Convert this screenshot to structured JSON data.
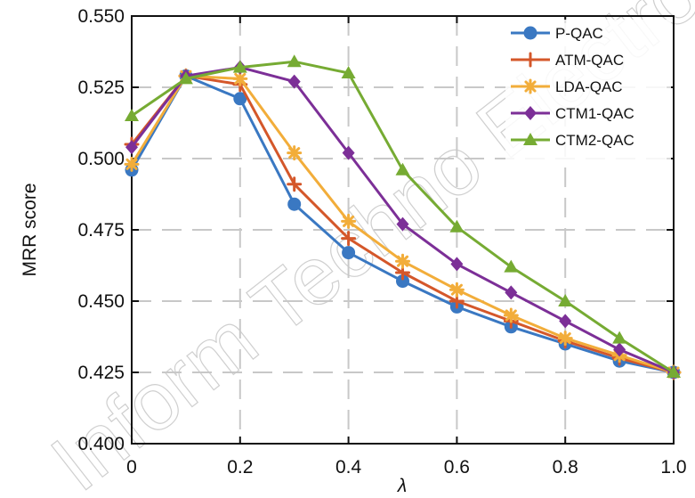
{
  "chart_data": {
    "type": "line",
    "title": "",
    "xlabel": "λ",
    "ylabel": "MRR score",
    "x": [
      0.0,
      0.1,
      0.2,
      0.3,
      0.4,
      0.5,
      0.6,
      0.7,
      0.8,
      0.9,
      1.0
    ],
    "xlim": [
      0.0,
      1.0
    ],
    "ylim": [
      0.4,
      0.55
    ],
    "xticks": [
      "0",
      "0.2",
      "0.4",
      "0.6",
      "0.8",
      "1.0"
    ],
    "yticks": [
      "0.400",
      "0.425",
      "0.450",
      "0.475",
      "0.500",
      "0.525",
      "0.550"
    ],
    "grid": true,
    "legend_position": "top-right",
    "series": [
      {
        "name": "P-QAC",
        "color": "#3a78c2",
        "marker": "circle",
        "values": [
          0.496,
          0.529,
          0.521,
          0.484,
          0.467,
          0.457,
          0.448,
          0.441,
          0.435,
          0.429,
          0.425
        ]
      },
      {
        "name": "ATM-QAC",
        "color": "#d4572a",
        "marker": "plus",
        "values": [
          0.505,
          0.529,
          0.526,
          0.491,
          0.472,
          0.46,
          0.45,
          0.443,
          0.436,
          0.43,
          0.425
        ]
      },
      {
        "name": "LDA-QAC",
        "color": "#f2ad3a",
        "marker": "asterisk",
        "values": [
          0.498,
          0.529,
          0.528,
          0.502,
          0.478,
          0.464,
          0.454,
          0.445,
          0.437,
          0.431,
          0.425
        ]
      },
      {
        "name": "CTM1-QAC",
        "color": "#7c2f97",
        "marker": "diamond",
        "values": [
          0.504,
          0.529,
          0.532,
          0.527,
          0.502,
          0.477,
          0.463,
          0.453,
          0.443,
          0.433,
          0.425
        ]
      },
      {
        "name": "CTM2-QAC",
        "color": "#76ab33",
        "marker": "triangle",
        "values": [
          0.515,
          0.528,
          0.532,
          0.534,
          0.53,
          0.496,
          0.476,
          0.462,
          0.45,
          0.437,
          0.425
        ]
      }
    ],
    "watermark": "Inform Techno Electron Ent"
  }
}
